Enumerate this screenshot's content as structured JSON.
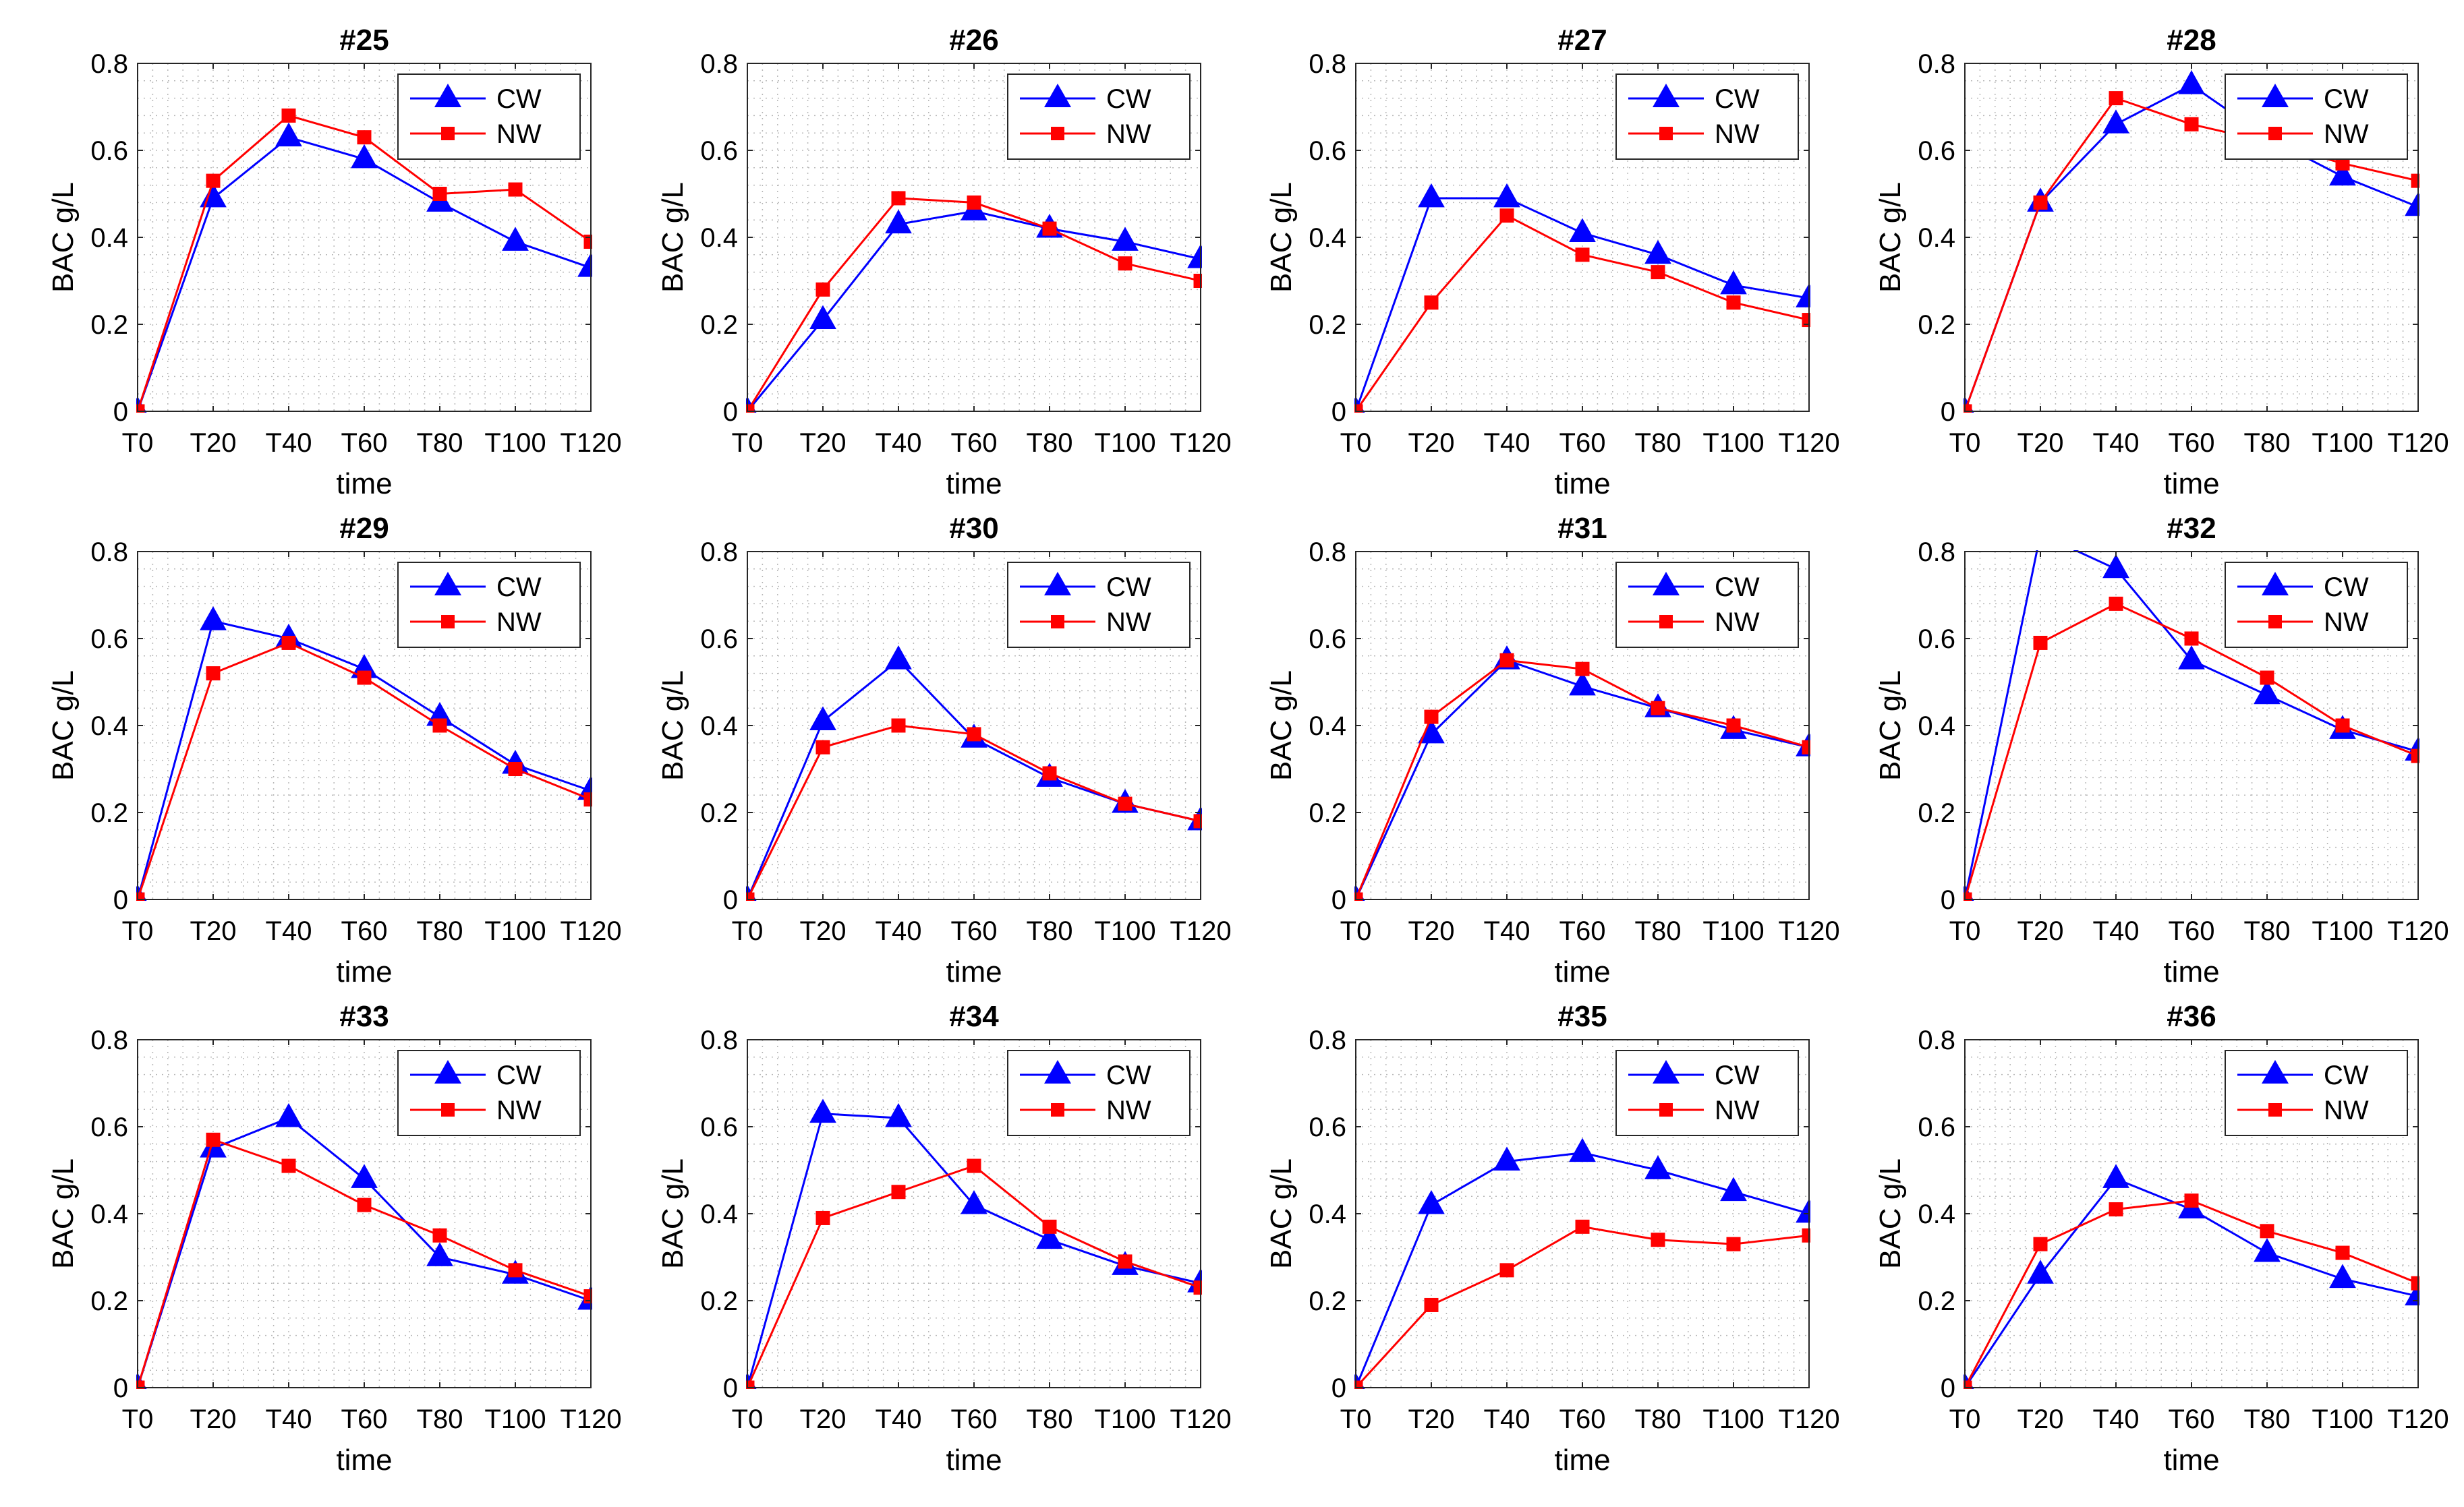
{
  "figure": {
    "xlabel": "time",
    "ylabel": "BAC g/L",
    "legend": [
      {
        "name": "CW",
        "color": "#0000FF",
        "marker": "triangle"
      },
      {
        "name": "NW",
        "color": "#FF0000",
        "marker": "square"
      }
    ],
    "legend_position": "top-right",
    "grid": "dotted minor",
    "layout": "3 rows x 4 columns"
  },
  "chart_data": [
    {
      "type": "line",
      "title": "#25",
      "xlabel": "time",
      "ylabel": "BAC g/L",
      "categories": [
        "T0",
        "T20",
        "T40",
        "T60",
        "T80",
        "T100",
        "T120"
      ],
      "ylim": [
        0,
        0.8
      ],
      "yticks": [
        "0",
        "0.2",
        "0.4",
        "0.6",
        "0.8"
      ],
      "legend": "top-right",
      "series": [
        {
          "name": "CW",
          "values": [
            0,
            0.49,
            0.63,
            0.58,
            0.48,
            0.39,
            0.33
          ]
        },
        {
          "name": "NW",
          "values": [
            0,
            0.53,
            0.68,
            0.63,
            0.5,
            0.51,
            0.39
          ]
        }
      ]
    },
    {
      "type": "line",
      "title": "#26",
      "xlabel": "time",
      "ylabel": "BAC g/L",
      "categories": [
        "T0",
        "T20",
        "T40",
        "T60",
        "T80",
        "T100",
        "T120"
      ],
      "ylim": [
        0,
        0.8
      ],
      "yticks": [
        "0",
        "0.2",
        "0.4",
        "0.6",
        "0.8"
      ],
      "legend": "top-right",
      "series": [
        {
          "name": "CW",
          "values": [
            0,
            0.21,
            0.43,
            0.46,
            0.42,
            0.39,
            0.35
          ]
        },
        {
          "name": "NW",
          "values": [
            0,
            0.28,
            0.49,
            0.48,
            0.42,
            0.34,
            0.3
          ]
        }
      ]
    },
    {
      "type": "line",
      "title": "#27",
      "xlabel": "time",
      "ylabel": "BAC g/L",
      "categories": [
        "T0",
        "T20",
        "T40",
        "T60",
        "T80",
        "T100",
        "T120"
      ],
      "ylim": [
        0,
        0.8
      ],
      "yticks": [
        "0",
        "0.2",
        "0.4",
        "0.6",
        "0.8"
      ],
      "legend": "top-right",
      "series": [
        {
          "name": "CW",
          "values": [
            0,
            0.49,
            0.49,
            0.41,
            0.36,
            0.29,
            0.26
          ]
        },
        {
          "name": "NW",
          "values": [
            0,
            0.25,
            0.45,
            0.36,
            0.32,
            0.25,
            0.21
          ]
        }
      ]
    },
    {
      "type": "line",
      "title": "#28",
      "xlabel": "time",
      "ylabel": "BAC g/L",
      "categories": [
        "T0",
        "T20",
        "T40",
        "T60",
        "T80",
        "T100",
        "T120"
      ],
      "ylim": [
        0,
        0.8
      ],
      "yticks": [
        "0",
        "0.2",
        "0.4",
        "0.6",
        "0.8"
      ],
      "legend": "top-right",
      "series": [
        {
          "name": "CW",
          "values": [
            0,
            0.48,
            0.66,
            0.75,
            0.63,
            0.54,
            0.47
          ]
        },
        {
          "name": "NW",
          "values": [
            0,
            0.48,
            0.72,
            0.66,
            0.62,
            0.57,
            0.53
          ]
        }
      ]
    },
    {
      "type": "line",
      "title": "#29",
      "xlabel": "time",
      "ylabel": "BAC g/L",
      "categories": [
        "T0",
        "T20",
        "T40",
        "T60",
        "T80",
        "T100",
        "T120"
      ],
      "ylim": [
        0,
        0.8
      ],
      "yticks": [
        "0",
        "0.2",
        "0.4",
        "0.6",
        "0.8"
      ],
      "legend": "top-right",
      "series": [
        {
          "name": "CW",
          "values": [
            0,
            0.64,
            0.6,
            0.53,
            0.42,
            0.31,
            0.25
          ]
        },
        {
          "name": "NW",
          "values": [
            0,
            0.52,
            0.59,
            0.51,
            0.4,
            0.3,
            0.23
          ]
        }
      ]
    },
    {
      "type": "line",
      "title": "#30",
      "xlabel": "time",
      "ylabel": "BAC g/L",
      "categories": [
        "T0",
        "T20",
        "T40",
        "T60",
        "T80",
        "T100",
        "T120"
      ],
      "ylim": [
        0,
        0.8
      ],
      "yticks": [
        "0",
        "0.2",
        "0.4",
        "0.6",
        "0.8"
      ],
      "legend": "top-right",
      "series": [
        {
          "name": "CW",
          "values": [
            0,
            0.41,
            0.55,
            0.37,
            0.28,
            0.22,
            0.18
          ]
        },
        {
          "name": "NW",
          "values": [
            0,
            0.35,
            0.4,
            0.38,
            0.29,
            0.22,
            0.18
          ]
        }
      ]
    },
    {
      "type": "line",
      "title": "#31",
      "xlabel": "time",
      "ylabel": "BAC g/L",
      "categories": [
        "T0",
        "T20",
        "T40",
        "T60",
        "T80",
        "T100",
        "T120"
      ],
      "ylim": [
        0,
        0.8
      ],
      "yticks": [
        "0",
        "0.2",
        "0.4",
        "0.6",
        "0.8"
      ],
      "legend": "top-right",
      "series": [
        {
          "name": "CW",
          "values": [
            0,
            0.38,
            0.55,
            0.49,
            0.44,
            0.39,
            0.35
          ]
        },
        {
          "name": "NW",
          "values": [
            0,
            0.42,
            0.55,
            0.53,
            0.44,
            0.4,
            0.35
          ]
        }
      ]
    },
    {
      "type": "line",
      "title": "#32",
      "xlabel": "time",
      "ylabel": "BAC g/L",
      "categories": [
        "T0",
        "T20",
        "T40",
        "T60",
        "T80",
        "T100",
        "T120"
      ],
      "ylim": [
        0,
        0.8
      ],
      "yticks": [
        "0",
        "0.2",
        "0.4",
        "0.6",
        "0.8"
      ],
      "legend": "top-right",
      "series": [
        {
          "name": "CW",
          "values": [
            0,
            0.84,
            0.76,
            0.55,
            0.47,
            0.39,
            0.34
          ]
        },
        {
          "name": "NW",
          "values": [
            0,
            0.59,
            0.68,
            0.6,
            0.51,
            0.4,
            0.33
          ]
        }
      ]
    },
    {
      "type": "line",
      "title": "#33",
      "xlabel": "time",
      "ylabel": "BAC g/L",
      "categories": [
        "T0",
        "T20",
        "T40",
        "T60",
        "T80",
        "T100",
        "T120"
      ],
      "ylim": [
        0,
        0.8
      ],
      "yticks": [
        "0",
        "0.2",
        "0.4",
        "0.6",
        "0.8"
      ],
      "legend": "top-right",
      "series": [
        {
          "name": "CW",
          "values": [
            0,
            0.55,
            0.62,
            0.48,
            0.3,
            0.26,
            0.2
          ]
        },
        {
          "name": "NW",
          "values": [
            0,
            0.57,
            0.51,
            0.42,
            0.35,
            0.27,
            0.21
          ]
        }
      ]
    },
    {
      "type": "line",
      "title": "#34",
      "xlabel": "time",
      "ylabel": "BAC g/L",
      "categories": [
        "T0",
        "T20",
        "T40",
        "T60",
        "T80",
        "T100",
        "T120"
      ],
      "ylim": [
        0,
        0.8
      ],
      "yticks": [
        "0",
        "0.2",
        "0.4",
        "0.6",
        "0.8"
      ],
      "legend": "top-right",
      "series": [
        {
          "name": "CW",
          "values": [
            0,
            0.63,
            0.62,
            0.42,
            0.34,
            0.28,
            0.24
          ]
        },
        {
          "name": "NW",
          "values": [
            0,
            0.39,
            0.45,
            0.51,
            0.37,
            0.29,
            0.23
          ]
        }
      ]
    },
    {
      "type": "line",
      "title": "#35",
      "xlabel": "time",
      "ylabel": "BAC g/L",
      "categories": [
        "T0",
        "T20",
        "T40",
        "T60",
        "T80",
        "T100",
        "T120"
      ],
      "ylim": [
        0,
        0.8
      ],
      "yticks": [
        "0",
        "0.2",
        "0.4",
        "0.6",
        "0.8"
      ],
      "legend": "top-right",
      "series": [
        {
          "name": "CW",
          "values": [
            0,
            0.42,
            0.52,
            0.54,
            0.5,
            0.45,
            0.4
          ]
        },
        {
          "name": "NW",
          "values": [
            0,
            0.19,
            0.27,
            0.37,
            0.34,
            0.33,
            0.35
          ]
        }
      ]
    },
    {
      "type": "line",
      "title": "#36",
      "xlabel": "time",
      "ylabel": "BAC g/L",
      "categories": [
        "T0",
        "T20",
        "T40",
        "T60",
        "T80",
        "T100",
        "T120"
      ],
      "ylim": [
        0,
        0.8
      ],
      "yticks": [
        "0",
        "0.2",
        "0.4",
        "0.6",
        "0.8"
      ],
      "legend": "top-right",
      "series": [
        {
          "name": "CW",
          "values": [
            0,
            0.26,
            0.48,
            0.41,
            0.31,
            0.25,
            0.21
          ]
        },
        {
          "name": "NW",
          "values": [
            0,
            0.33,
            0.41,
            0.43,
            0.36,
            0.31,
            0.24
          ]
        }
      ]
    }
  ]
}
